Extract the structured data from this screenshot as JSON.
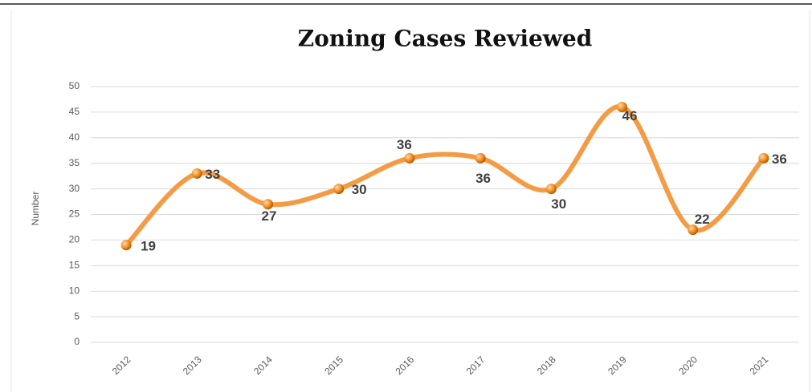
{
  "chart_data": {
    "type": "line",
    "title": "Zoning Cases Reviewed",
    "y_label": "Number",
    "categories": [
      "2012",
      "2013",
      "2014",
      "2015",
      "2016",
      "2017",
      "2018",
      "2019",
      "2020",
      "2021"
    ],
    "series": [
      {
        "name": "Zoning Cases Reviewed",
        "color": "#f39b45",
        "values": [
          19,
          33,
          27,
          30,
          36,
          36,
          30,
          46,
          22,
          36
        ]
      }
    ],
    "ylim": [
      0,
      50
    ],
    "yticks": [
      0,
      5,
      10,
      15,
      20,
      25,
      30,
      35,
      40,
      45,
      50
    ],
    "grid": true,
    "smooth": true,
    "data_labels": true
  }
}
